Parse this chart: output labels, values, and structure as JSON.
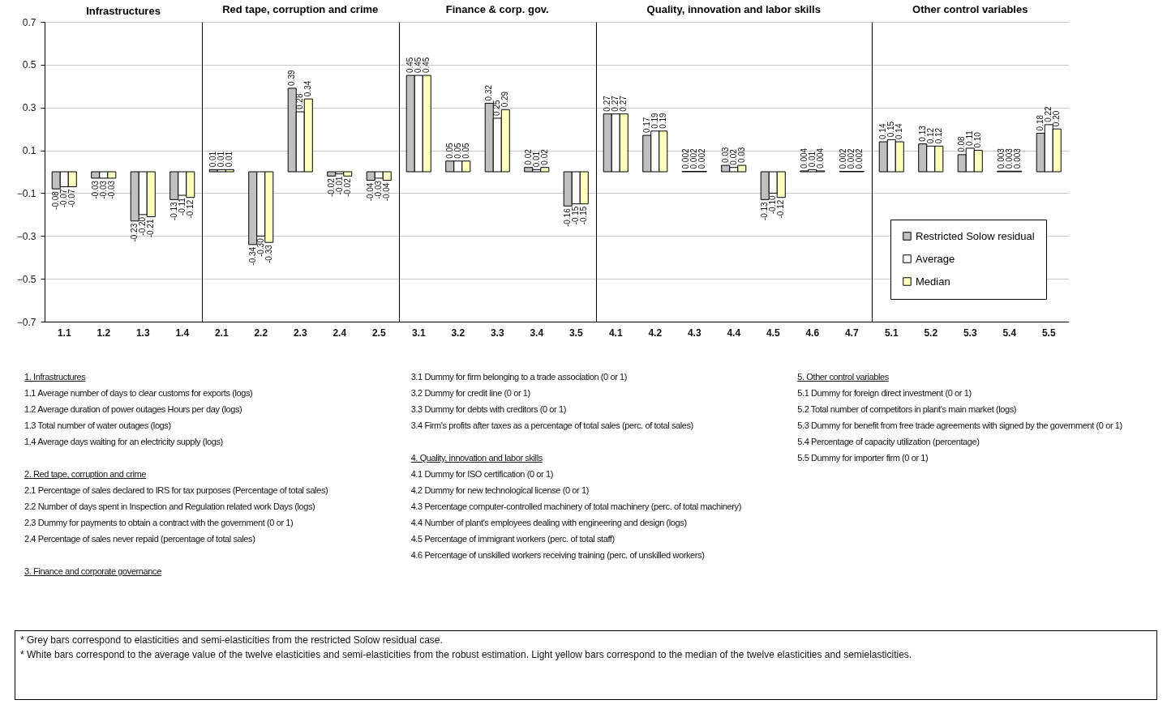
{
  "chart_data": [
    {
      "type": "bar",
      "title": "Infrastructures",
      "categories": [
        "1.1",
        "1.2",
        "1.3",
        "1.4"
      ],
      "ylim": [
        -0.7,
        0.7
      ],
      "yticks": [
        -0.7,
        -0.5,
        -0.3,
        -0.1,
        0.1,
        0.3,
        0.5,
        0.7
      ],
      "grid": "y",
      "legend": false,
      "series": [
        {
          "color": "#c0c0c0",
          "values": [
            -0.08,
            -0.03,
            -0.23,
            -0.13
          ],
          "value_labels": [
            "-0.08",
            "-0.03",
            "-0.23",
            "-0.13"
          ]
        },
        {
          "color": "#ffffff",
          "values": [
            -0.07,
            -0.03,
            -0.2,
            -0.11
          ],
          "value_labels": [
            "-0.07",
            "-0.03",
            "-0.20",
            "-0.11"
          ]
        },
        {
          "color": "#ffffc0",
          "values": [
            -0.07,
            -0.03,
            -0.21,
            -0.12
          ],
          "value_labels": [
            "-0.07",
            "-0.03",
            "-0.21",
            "-0.12"
          ]
        }
      ],
      "annotations": [
        "1. Infrastructures",
        "1.1 Average number of days to clear customs for exports (logs)",
        "1.2 Average duration of power outages Hours per day (logs)",
        "1.3 Total number of water outages (logs)",
        "1.4 Average days waiting for an electricity supply (logs)"
      ]
    },
    {
      "type": "bar",
      "title": "Red tape, corruption and crime",
      "categories": [
        "2.1",
        "2.2",
        "2.3",
        "2.4",
        "2.5"
      ],
      "ylim": [
        -0.7,
        0.7
      ],
      "yticks": [
        -0.7,
        -0.5,
        -0.3,
        -0.1,
        0.1,
        0.3,
        0.5,
        0.7
      ],
      "grid": "y",
      "legend": false,
      "tick_labels": "x",
      "series": [
        {
          "color": "#c0c0c0",
          "values": [
            0.01,
            -0.34,
            0.39,
            -0.02,
            -0.04
          ],
          "value_labels": [
            "0.01",
            "-0.34",
            "0.39",
            "-0.02",
            "-0.04"
          ]
        },
        {
          "color": "#ffffff",
          "values": [
            0.01,
            -0.3,
            0.28,
            -0.01,
            -0.03
          ],
          "value_labels": [
            "0.01",
            "-0.30",
            "0.28",
            "-0.01",
            "-0.03"
          ]
        },
        {
          "color": "#ffffc0",
          "values": [
            0.01,
            -0.33,
            0.34,
            -0.02,
            -0.04
          ],
          "value_labels": [
            "0.01",
            "-0.33",
            "0.34",
            "-0.02",
            "-0.04"
          ]
        }
      ],
      "annotations": [
        "2. Red tape, corruption and crime",
        "2.1 Percentage of sales declared to IRS for tax purposes (Percentage of total sales)",
        "2.2 Number of days spent in Inspection and Regulation related work Days (logs)",
        "2.3 Dummy for payments to obtain a contract with the government (0 or 1)",
        "2.4 Percentage of sales never repaid (percentage of total sales)"
      ]
    },
    {
      "type": "bar",
      "title": "Finance & corp. gov.",
      "categories": [
        "3.1",
        "3.2",
        "3.3",
        "3.4",
        "3.5"
      ],
      "ylim": [
        -0.7,
        0.7
      ],
      "yticks": [
        -0.7,
        -0.5,
        -0.3,
        -0.1,
        0.1,
        0.3,
        0.5,
        0.7
      ],
      "grid": "y",
      "legend": false,
      "tick_labels": "x",
      "series": [
        {
          "color": "#c0c0c0",
          "values": [
            0.45,
            0.05,
            0.32,
            0.02,
            -0.16
          ],
          "value_labels": [
            "0.45",
            "0.05",
            "0.32",
            "0.02",
            "-0.16"
          ]
        },
        {
          "color": "#ffffff",
          "values": [
            0.45,
            0.05,
            0.25,
            0.01,
            -0.15
          ],
          "value_labels": [
            "0.45",
            "0.05",
            "0.25",
            "0.01",
            "-0.15"
          ]
        },
        {
          "color": "#ffffc0",
          "values": [
            0.45,
            0.05,
            0.29,
            0.02,
            -0.15
          ],
          "value_labels": [
            "0.45",
            "0.05",
            "0.29",
            "0.02",
            "-0.15"
          ]
        }
      ],
      "annotations": [
        "3. Finance and corporate governance",
        "3.1 Dummy for firm belonging to a trade association (0 or 1)",
        "3.2 Dummy for credit line (0 or 1)",
        "3.3 Dummy for debts with creditors (0 or 1)",
        "3.4 Firm's profits after taxes as a percentage of total sales (perc. of total sales)"
      ]
    },
    {
      "type": "bar",
      "title": "Quality, innovation and labor skills",
      "categories": [
        "4.1",
        "4.2",
        "4.3",
        "4.4",
        "4.5",
        "4.6",
        "4.7"
      ],
      "ylim": [
        -0.7,
        0.7
      ],
      "yticks": [
        -0.7,
        -0.5,
        -0.3,
        -0.1,
        0.1,
        0.3,
        0.5,
        0.7
      ],
      "grid": "y",
      "legend": false,
      "tick_labels": "x",
      "series": [
        {
          "color": "#c0c0c0",
          "values": [
            0.27,
            0.17,
            0.002,
            0.03,
            -0.13,
            0.004,
            0.002
          ],
          "value_labels": [
            "0.27",
            "0.17",
            "0.002",
            "0.03",
            "-0.13",
            "0.004",
            "0.002"
          ]
        },
        {
          "color": "#ffffff",
          "values": [
            0.27,
            0.19,
            0.002,
            0.02,
            -0.1,
            0.01,
            0.002
          ],
          "value_labels": [
            "0.27",
            "0.19",
            "0.002",
            "0.02",
            "-0.10",
            "0.01",
            "0.002"
          ]
        },
        {
          "color": "#ffffc0",
          "values": [
            0.27,
            0.19,
            0.002,
            0.03,
            -0.12,
            0.004,
            0.002
          ],
          "value_labels": [
            "0.27",
            "0.19",
            "0.002",
            "0.03",
            "-0.12",
            "0.004",
            "0.002"
          ]
        }
      ],
      "annotations": [
        "4. Quality, innovation and labor skills",
        "4.1 Dummy for ISO certification (0 or 1)",
        "4.2 Dummy for new technological license (0 or 1)",
        "4.3 Percentage computer-controlled machinery of total machinery (perc. of total machinery)",
        "4.4 Number of plant's employees dealing with engineering and design (logs)",
        "4.5 Percentage of immigrant workers (perc. of total staff)",
        "4.6 Percentage of unskilled workers receiving training (perc. of unskilled workers)"
      ]
    },
    {
      "type": "bar",
      "title": "Other control variables",
      "categories": [
        "5.1",
        "5.2",
        "5.3",
        "5.4",
        "5.5"
      ],
      "ylim": [
        -0.7,
        0.7
      ],
      "yticks": [
        -0.7,
        -0.5,
        -0.3,
        -0.1,
        0.1,
        0.3,
        0.5,
        0.7
      ],
      "grid": "y",
      "legend": "bottom right",
      "tick_labels": "x",
      "series": [
        {
          "name": "Restricted Solow residual",
          "color": "#c0c0c0",
          "values": [
            0.14,
            0.13,
            0.08,
            0.003,
            0.18
          ],
          "value_labels": [
            "0.14",
            "0.13",
            "0.08",
            "0.003",
            "0.18"
          ]
        },
        {
          "name": "Average",
          "color": "#ffffff",
          "values": [
            0.15,
            0.12,
            0.11,
            0.003,
            0.22
          ],
          "value_labels": [
            "0.15",
            "0.12",
            "0.11",
            "0.003",
            "0.22"
          ]
        },
        {
          "name": "Median",
          "color": "#ffffc0",
          "values": [
            0.14,
            0.12,
            0.1,
            0.003,
            0.2
          ],
          "value_labels": [
            "0.14",
            "0.12",
            "0.10",
            "0.003",
            "0.20"
          ]
        }
      ],
      "annotations": [
        "5. Other control variables",
        "5.1 Dummy for foreign direct investment (0 or 1)",
        "5.2 Total number of competitors in plant's main market (logs)",
        "5.3 Dummy for benefit from free trade agreements with signed by the government (0 or 1)",
        "5.4 Percentage of capacity utilization (percentage)",
        "5.5 Dummy for importer firm (0 or 1)"
      ]
    },
    {
      "type": "other",
      "annotations": [
        "* Grey bars correspond to elasticities and semi-elasticities from the restricted Solow residual case.",
        "* White bars correspond to the average value of the twelve elasticities and semi-elasticities from the robust estimation. Light yellow bars correspond to the median of the twelve elasticities and semielasticities."
      ]
    }
  ]
}
